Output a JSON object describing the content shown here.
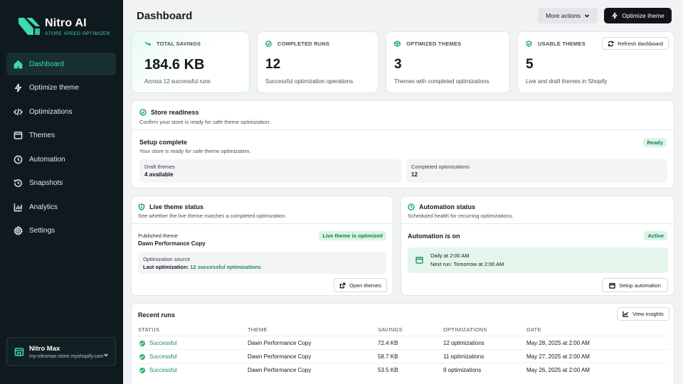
{
  "brand": {
    "name": "Nitro AI",
    "tagline": "STORE SPEED OPTIMIZER",
    "accent": "#3ed9ad"
  },
  "nav": [
    {
      "label": "Dashboard",
      "icon": "home-icon",
      "active": true
    },
    {
      "label": "Optimize theme",
      "icon": "bolt-icon"
    },
    {
      "label": "Optimizations",
      "icon": "code-icon"
    },
    {
      "label": "Themes",
      "icon": "window-icon"
    },
    {
      "label": "Automation",
      "icon": "clock-icon"
    },
    {
      "label": "Snapshots",
      "icon": "history-icon"
    },
    {
      "label": "Analytics",
      "icon": "bar-chart-icon"
    },
    {
      "label": "Settings",
      "icon": "gear-icon"
    }
  ],
  "account": {
    "name": "Nitro Max",
    "domain": "my-nitromax-store.myshopify.com"
  },
  "header": {
    "title": "Dashboard",
    "more_actions": "More actions",
    "optimize": "Optimize theme"
  },
  "stats": [
    {
      "label": "TOTAL SAVINGS",
      "value": "184.6 KB",
      "desc": "Across 12 successful runs"
    },
    {
      "label": "COMPLETED RUNS",
      "value": "12",
      "desc": "Successful optimization operations"
    },
    {
      "label": "OPTIMIZED THEMES",
      "value": "3",
      "desc": "Themes with completed optimizations"
    },
    {
      "label": "USABLE THEMES",
      "value": "5",
      "desc": "Live and draft themes in Shopify"
    }
  ],
  "refresh_label": "Refresh dashboard",
  "readiness": {
    "title": "Store readiness",
    "subtitle": "Confirm your store is ready for safe theme optimization.",
    "setup_title": "Setup complete",
    "setup_sub": "Your store is ready for safe theme optimization.",
    "badge": "Ready",
    "draft_label": "Draft themes",
    "draft_value": "4 available",
    "completed_label": "Completed optimizations",
    "completed_value": "12"
  },
  "live": {
    "title": "Live theme status",
    "subtitle": "See whether the live theme matches a completed optimization.",
    "published_label": "Published theme",
    "published_value": "Dawn Performance Copy",
    "badge": "Live theme is optimized",
    "source_label": "Optimization source",
    "source_prefix": "Last optimization:",
    "source_value": "12 successful optimizations",
    "open_btn": "Open themes"
  },
  "automation": {
    "title": "Automation status",
    "subtitle": "Scheduled health for recurring optimizations.",
    "state": "Automation is on",
    "badge": "Active",
    "schedule": "Daily at 2:00 AM",
    "next_run": "Next run: Tomorrow at 2:00 AM",
    "setup_btn": "Setup automation"
  },
  "runs": {
    "title": "Recent runs",
    "insights_btn": "View insights",
    "columns": [
      "STATUS",
      "THEME",
      "SAVINGS",
      "OPTIMIZATIONS",
      "DATE"
    ],
    "rows": [
      {
        "status": "Successful",
        "theme": "Dawn Performance Copy",
        "savings": "72.4 KB",
        "optimizations": "12 optimizations",
        "date": "May 28, 2025 at 2:00 AM"
      },
      {
        "status": "Successful",
        "theme": "Dawn Performance Copy",
        "savings": "58.7 KB",
        "optimizations": "11 optimizations",
        "date": "May 27, 2025 at 2:00 AM"
      },
      {
        "status": "Successful",
        "theme": "Dawn Performance Copy",
        "savings": "53.5 KB",
        "optimizations": "9 optimizations",
        "date": "May 26, 2025 at 2:00 AM"
      }
    ]
  }
}
